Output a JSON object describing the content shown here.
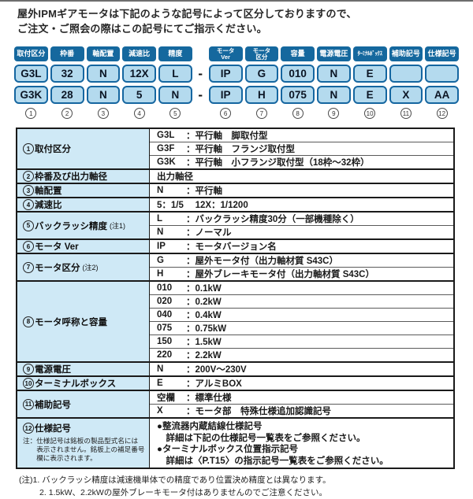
{
  "colors": {
    "accent_dark_blue": "#15689e",
    "value_box_blue": "#b4daee",
    "label_cell_blue": "#cfe9f6",
    "border_dark": "#1a1a1a"
  },
  "page": {
    "intro_line1": "屋外IPMギアモータは下記のような記号によって区分しておりますので、",
    "intro_line2": "ご注文・ご照会の際はこの記号にてご指示ください。"
  },
  "code_diagram": {
    "dash": "-",
    "columns": [
      {
        "num": "1",
        "header_lines": [
          "取付区分"
        ],
        "row1": "G3L",
        "row2": "G3K"
      },
      {
        "num": "2",
        "header_lines": [
          "枠番"
        ],
        "row1": "32",
        "row2": "28"
      },
      {
        "num": "3",
        "header_lines": [
          "軸配置"
        ],
        "row1": "N",
        "row2": "N"
      },
      {
        "num": "4",
        "header_lines": [
          "減速比"
        ],
        "row1": "12X",
        "row2": "5"
      },
      {
        "num": "5",
        "header_lines": [
          "精度"
        ],
        "row1": "L",
        "row2": "N"
      },
      {
        "num": "6",
        "header_lines": [
          "モータ",
          "Ver"
        ],
        "dash_before": true,
        "row1": "IP",
        "row2": "IP"
      },
      {
        "num": "7",
        "header_lines": [
          "モータ",
          "区分"
        ],
        "row1": "G",
        "row2": "H"
      },
      {
        "num": "8",
        "header_lines": [
          "容量"
        ],
        "row1": "010",
        "row2": "075"
      },
      {
        "num": "9",
        "header_lines": [
          "電源電圧"
        ],
        "row1": "N",
        "row2": "N"
      },
      {
        "num": "10",
        "header_lines": [
          "ﾀｰﾐﾅﾙﾎﾞｯｸｽ"
        ],
        "tiny": true,
        "row1": "E",
        "row2": "E"
      },
      {
        "num": "11",
        "header_lines": [
          "補助記号"
        ],
        "row1": "",
        "row2": "X"
      },
      {
        "num": "12",
        "header_lines": [
          "仕様記号"
        ],
        "row1": "",
        "row2": "AA"
      }
    ]
  },
  "spec_table": {
    "rows": [
      {
        "num": "1",
        "label": "取付区分",
        "lines": [
          {
            "code": "G3L",
            "desc": "平行軸　脚取付型"
          },
          {
            "code": "G3F",
            "desc": "平行軸　フランジ取付型"
          },
          {
            "code": "G3K",
            "desc": "平行軸　小フランジ取付型（18枠～32枠）"
          }
        ]
      },
      {
        "num": "2",
        "label": "枠番及び出力軸径",
        "lines": [
          {
            "text": "出力軸径"
          }
        ]
      },
      {
        "num": "3",
        "label": "軸配置",
        "lines": [
          {
            "code": "N",
            "desc": "平行軸"
          }
        ]
      },
      {
        "num": "4",
        "label": "減速比",
        "lines": [
          {
            "text": "5：1/5　 12X：1/1200"
          }
        ]
      },
      {
        "num": "5",
        "label": "バックラッシ精度",
        "note": "(注1)",
        "lines": [
          {
            "code": "L",
            "desc": "バックラッシ精度30分（一部機種除く）"
          },
          {
            "code": "N",
            "desc": "ノーマル"
          }
        ]
      },
      {
        "num": "6",
        "label": "モータ Ver",
        "lines": [
          {
            "code": "IP",
            "desc": "モータバージョン名"
          }
        ]
      },
      {
        "num": "7",
        "label": "モータ区分",
        "note": "(注2)",
        "lines": [
          {
            "code": "G",
            "desc": "屋外モータ付（出力軸材質 S43C）"
          },
          {
            "code": "H",
            "desc": "屋外ブレーキモータ付（出力軸材質 S43C）"
          }
        ]
      },
      {
        "num": "8",
        "label": "モータ呼称と容量",
        "lines": [
          {
            "code": "010",
            "desc": "0.1kW"
          },
          {
            "code": "020",
            "desc": "0.2kW"
          },
          {
            "code": "040",
            "desc": "0.4kW"
          },
          {
            "code": "075",
            "desc": "0.75kW"
          },
          {
            "code": "150",
            "desc": "1.5kW"
          },
          {
            "code": "220",
            "desc": "2.2kW"
          }
        ]
      },
      {
        "num": "9",
        "label": "電源電圧",
        "lines": [
          {
            "code": "N",
            "desc": "200V～230V"
          }
        ]
      },
      {
        "num": "10",
        "label": "ターミナルボックス",
        "lines": [
          {
            "code": "E",
            "desc": "アルミBOX"
          }
        ]
      },
      {
        "num": "11",
        "label": "補助記号",
        "lines": [
          {
            "code": "空欄",
            "desc": "標準仕様"
          },
          {
            "code": "X",
            "desc": "モータ部　特殊仕様追加認識記号"
          }
        ]
      },
      {
        "num": "12",
        "label": "仕様記号",
        "tall": true,
        "note_lines": [
          "注：仕様記号は銘板の製品型式名には",
          "　　表示されません。銘板上の補足番号",
          "　　欄に表示されます。"
        ],
        "detail_lines": [
          "●整流器内蔵結線仕様記号",
          "　詳細は下記の仕様記号一覧表をご参照ください。",
          "●ターミナルボックス位置指示記号",
          "　詳細は〈P.T15〉の指示記号一覧表をご参照ください。"
        ]
      }
    ]
  },
  "footnotes": [
    {
      "prefix": "(注)1.",
      "text": "バックラッシ精度は減速機単体での精度であり位置決め精度とは異なります。",
      "indent": false
    },
    {
      "prefix": "2.",
      "text": "1.5kW、2.2kWの屋外ブレーキモータ付はありませんのでご注意ください。",
      "indent": true
    }
  ]
}
